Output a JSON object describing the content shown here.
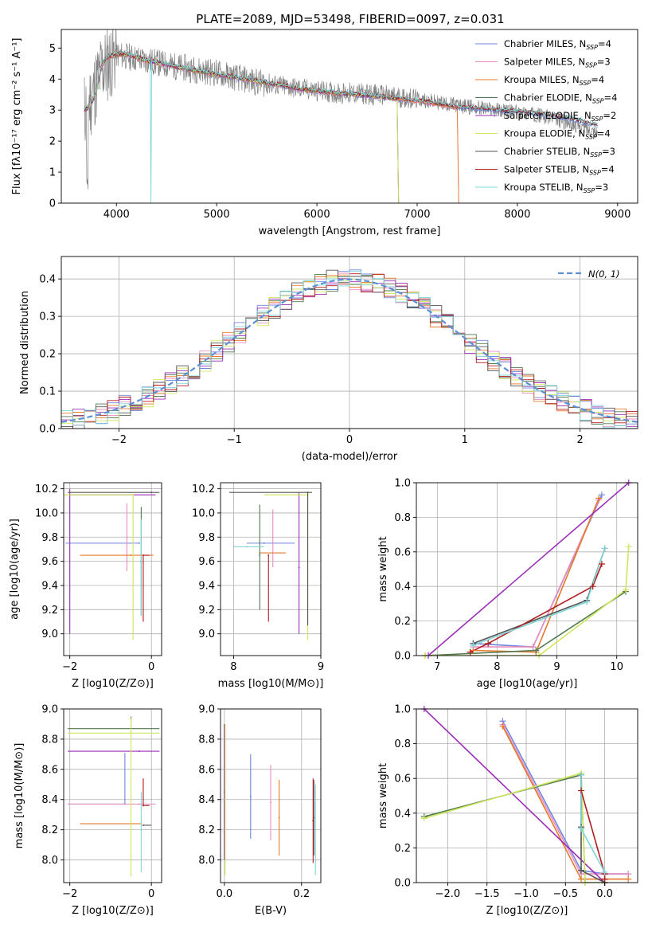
{
  "figure_title": "PLATE=2089, MJD=53498, FIBERID=0097, z=0.031",
  "colors": {
    "blue": "#6f86de",
    "pink": "#e78fbf",
    "orange": "#e5782a",
    "green": "#4f7a4f",
    "purple": "#9b2fb8",
    "yellow": "#cfe65c",
    "gray": "#555555",
    "red": "#b11d1d",
    "cyan": "#7fd5d8",
    "data": "#808080",
    "gaussian": "#5b8fd6"
  },
  "chart_data": [
    {
      "id": "spectrum",
      "type": "line",
      "xlabel": "wavelength [Angstrom, rest frame]",
      "ylabel": "Flux [fλ10⁻¹⁷ erg cm⁻² s⁻¹ A⁻¹]",
      "xlim": [
        3450,
        9200
      ],
      "ylim": [
        0,
        5.6
      ],
      "xticks": [
        4000,
        5000,
        6000,
        7000,
        8000,
        9000
      ],
      "yticks": [
        0,
        1,
        2,
        3,
        4,
        5
      ],
      "grid": false,
      "legend_position": "top-right",
      "observed_spectrum": {
        "color_key": "data",
        "x": [
          3680,
          3750,
          3850,
          4000,
          4300,
          4600,
          5000,
          5400,
          5800,
          6200,
          6600,
          7000,
          7400,
          7800,
          8200,
          8500,
          8800
        ],
        "y": [
          3.0,
          3.4,
          4.3,
          4.8,
          4.6,
          4.4,
          4.2,
          3.9,
          3.7,
          3.55,
          3.5,
          3.35,
          3.15,
          3.0,
          2.85,
          2.6,
          2.3
        ]
      },
      "model_spectra": {
        "x": [
          3680,
          3720,
          3760,
          3800,
          3850,
          3900,
          4000,
          4100,
          4300,
          4600,
          5000,
          5400,
          5800,
          6200,
          6600,
          7000,
          7400,
          7800,
          8200,
          8500,
          8800
        ],
        "y": [
          3.0,
          3.1,
          3.3,
          3.6,
          4.4,
          4.7,
          4.8,
          4.8,
          4.6,
          4.4,
          4.15,
          3.95,
          3.7,
          3.55,
          3.45,
          3.3,
          3.1,
          3.0,
          2.9,
          2.75,
          2.5
        ]
      },
      "series": [
        {
          "name": "Chabrier MILES, N_SSP=4",
          "color_key": "blue",
          "x_end": 8800
        },
        {
          "name": "Salpeter MILES, N_SSP=3",
          "color_key": "pink",
          "x_end": 7400
        },
        {
          "name": "Kroupa MILES, N_SSP=4",
          "color_key": "orange",
          "x_end": 7400
        },
        {
          "name": "Chabrier ELODIE, N_SSP=4",
          "color_key": "green",
          "x_end": 6800
        },
        {
          "name": "Salpeter ELODIE, N_SSP=2",
          "color_key": "purple",
          "x_end": 6800
        },
        {
          "name": "Kroupa ELODIE, N_SSP=4",
          "color_key": "yellow",
          "x_end": 6800
        },
        {
          "name": "Chabrier STELIB, N_SSP=3",
          "color_key": "gray",
          "x_end": 8800
        },
        {
          "name": "Salpeter STELIB, N_SSP=4",
          "color_key": "red",
          "x_end": 8800
        },
        {
          "name": "Kroupa STELIB, N_SSP=3",
          "color_key": "cyan",
          "x_end": 8800
        }
      ]
    },
    {
      "id": "residuals",
      "type": "line",
      "subtype": "step-histogram",
      "xlabel": "(data-model)/error",
      "ylabel": "Normed distribution",
      "xlim": [
        -2.5,
        2.5
      ],
      "ylim": [
        0,
        0.46
      ],
      "xticks": [
        -2,
        -1,
        0,
        1,
        2
      ],
      "yticks": [
        0.0,
        0.1,
        0.2,
        0.3,
        0.4
      ],
      "grid": true,
      "legend_position": "top-right",
      "gaussian_label": "N(0, 1)",
      "bins": {
        "start": -2.5,
        "width": 0.1,
        "count": 50
      },
      "series": [
        {
          "color_key": "blue",
          "noise_seed": 1
        },
        {
          "color_key": "pink",
          "noise_seed": 2
        },
        {
          "color_key": "orange",
          "noise_seed": 3
        },
        {
          "color_key": "green",
          "noise_seed": 4
        },
        {
          "color_key": "purple",
          "noise_seed": 5
        },
        {
          "color_key": "yellow",
          "noise_seed": 6
        },
        {
          "color_key": "gray",
          "noise_seed": 7
        },
        {
          "color_key": "red",
          "noise_seed": 8
        },
        {
          "color_key": "cyan",
          "noise_seed": 9
        }
      ]
    },
    {
      "id": "age_vs_Z",
      "type": "scatter",
      "xlabel": "Z [log10(Z/Z⊙)]",
      "ylabel": "age [log10(age/yr)]",
      "xlim": [
        -2.15,
        0.25
      ],
      "ylim": [
        8.82,
        10.25
      ],
      "xticks": [
        -2,
        0
      ],
      "yticks": [
        9.0,
        9.2,
        9.4,
        9.6,
        9.8,
        10.0,
        10.2
      ],
      "grid": true,
      "errorbars": [
        {
          "color_key": "blue",
          "x": -0.3,
          "xerr": [
            1.8,
            0.0
          ],
          "y": 9.75,
          "yerr": [
            0.0,
            0.0
          ]
        },
        {
          "color_key": "pink",
          "x": -0.6,
          "xerr": [
            0.0,
            0.0
          ],
          "y": 9.8,
          "yerr": [
            0.28,
            0.28
          ]
        },
        {
          "color_key": "orange",
          "x": -0.5,
          "xerr": [
            1.25,
            0.55
          ],
          "y": 9.65,
          "yerr": [
            0.0,
            0.0
          ]
        },
        {
          "color_key": "green",
          "x": -0.25,
          "xerr": [
            0.0,
            0.0
          ],
          "y": 9.6,
          "yerr": [
            0.45,
            0.45
          ]
        },
        {
          "color_key": "purple",
          "x": -2.0,
          "xerr": [
            0.0,
            2.1
          ],
          "y": 10.15,
          "yerr": [
            1.15,
            0.05
          ]
        },
        {
          "color_key": "yellow",
          "x": -0.45,
          "xerr": [
            1.7,
            0.0
          ],
          "y": 10.15,
          "yerr": [
            1.2,
            0.0
          ]
        },
        {
          "color_key": "gray",
          "x": 0.0,
          "xerr": [
            2.05,
            0.2
          ],
          "y": 10.17,
          "yerr": [
            0.0,
            0.0
          ]
        },
        {
          "color_key": "red",
          "x": -0.2,
          "xerr": [
            0.0,
            0.15
          ],
          "y": 9.65,
          "yerr": [
            0.55,
            0.0
          ]
        },
        {
          "color_key": "cyan",
          "x": -0.25,
          "xerr": [
            0.0,
            0.0
          ],
          "y": 9.55,
          "yerr": [
            0.4,
            0.4
          ]
        }
      ]
    },
    {
      "id": "age_vs_mass",
      "type": "scatter",
      "xlabel": "mass [log10(M/M⊙)]",
      "ylabel": "",
      "xlim": [
        7.85,
        9.0
      ],
      "ylim": [
        8.82,
        10.25
      ],
      "xticks": [
        8,
        9
      ],
      "yticks": [
        9.0,
        9.2,
        9.4,
        9.6,
        9.8,
        10.0,
        10.2
      ],
      "grid": true,
      "errorbars": [
        {
          "color_key": "blue",
          "x": 8.35,
          "xerr": [
            0.2,
            0.35
          ],
          "y": 9.75,
          "yerr": [
            0.0,
            0.0
          ]
        },
        {
          "color_key": "pink",
          "x": 8.45,
          "xerr": [
            0.0,
            0.0
          ],
          "y": 9.75,
          "yerr": [
            0.2,
            0.28
          ]
        },
        {
          "color_key": "orange",
          "x": 8.3,
          "xerr": [
            0.0,
            0.3
          ],
          "y": 9.67,
          "yerr": [
            0.0,
            0.0
          ]
        },
        {
          "color_key": "green",
          "x": 8.3,
          "xerr": [
            0.0,
            0.0
          ],
          "y": 9.65,
          "yerr": [
            0.45,
            0.42
          ]
        },
        {
          "color_key": "purple",
          "x": 8.75,
          "xerr": [
            0.0,
            0.0
          ],
          "y": 9.55,
          "yerr": [
            0.55,
            0.62
          ]
        },
        {
          "color_key": "yellow",
          "x": 8.85,
          "xerr": [
            0.5,
            0.0
          ],
          "y": 10.15,
          "yerr": [
            1.2,
            0.0
          ]
        },
        {
          "color_key": "gray",
          "x": 8.85,
          "xerr": [
            0.9,
            0.05
          ],
          "y": 10.17,
          "yerr": [
            1.1,
            0.0
          ]
        },
        {
          "color_key": "red",
          "x": 8.4,
          "xerr": [
            0.0,
            0.0
          ],
          "y": 9.65,
          "yerr": [
            0.55,
            0.0
          ]
        },
        {
          "color_key": "cyan",
          "x": 8.15,
          "xerr": [
            0.15,
            0.2
          ],
          "y": 9.72,
          "yerr": [
            0.0,
            0.0
          ]
        }
      ]
    },
    {
      "id": "weight_vs_age",
      "type": "line",
      "xlabel": "age [log10(age/yr)]",
      "ylabel": "mass weight",
      "xlim": [
        6.65,
        10.35
      ],
      "ylim": [
        0,
        1.0
      ],
      "xticks": [
        7,
        8,
        9,
        10
      ],
      "yticks": [
        0.0,
        0.2,
        0.4,
        0.6,
        0.8,
        1.0
      ],
      "grid": true,
      "series": [
        {
          "color_key": "blue",
          "x": [
            7.6,
            8.6,
            9.75
          ],
          "y": [
            0.07,
            0.05,
            0.93
          ]
        },
        {
          "color_key": "pink",
          "x": [
            7.6,
            8.6,
            9.7
          ],
          "y": [
            0.05,
            0.05,
            0.9
          ]
        },
        {
          "color_key": "orange",
          "x": [
            7.6,
            8.65,
            9.7
          ],
          "y": [
            0.03,
            0.02,
            0.91
          ]
        },
        {
          "color_key": "green",
          "x": [
            6.8,
            8.65,
            10.15
          ],
          "y": [
            0.0,
            0.03,
            0.37
          ]
        },
        {
          "color_key": "purple",
          "x": [
            6.85,
            10.2
          ],
          "y": [
            0.0,
            1.0
          ]
        },
        {
          "color_key": "yellow",
          "x": [
            6.8,
            8.7,
            10.15,
            10.2
          ],
          "y": [
            0.0,
            0.0,
            0.38,
            0.63
          ]
        },
        {
          "color_key": "gray",
          "x": [
            7.6,
            9.5,
            9.8
          ],
          "y": [
            0.07,
            0.32,
            0.62
          ]
        },
        {
          "color_key": "red",
          "x": [
            7.55,
            7.85,
            9.6,
            9.75
          ],
          "y": [
            0.02,
            0.07,
            0.4,
            0.53
          ]
        },
        {
          "color_key": "cyan",
          "x": [
            7.6,
            9.5,
            9.8
          ],
          "y": [
            0.06,
            0.31,
            0.62
          ]
        }
      ]
    },
    {
      "id": "mass_vs_Z",
      "type": "scatter",
      "xlabel": "Z [log10(Z/Z⊙)]",
      "ylabel": "mass [log10(M/M⊙)]",
      "xlim": [
        -2.15,
        0.25
      ],
      "ylim": [
        7.85,
        9.0
      ],
      "xticks": [
        -2,
        0
      ],
      "yticks": [
        8.0,
        8.2,
        8.4,
        8.6,
        8.8,
        9.0
      ],
      "grid": true,
      "errorbars": [
        {
          "color_key": "blue",
          "x": -0.65,
          "xerr": [
            1.4,
            0.0
          ],
          "y": 8.37,
          "yerr": [
            0.0,
            0.34
          ]
        },
        {
          "color_key": "pink",
          "x": -0.3,
          "xerr": [
            1.75,
            0.4
          ],
          "y": 8.37,
          "yerr": [
            0.0,
            0.0
          ]
        },
        {
          "color_key": "orange",
          "x": -0.5,
          "xerr": [
            1.25,
            0.25
          ],
          "y": 8.24,
          "yerr": [
            0.0,
            0.0
          ]
        },
        {
          "color_key": "green",
          "x": -0.5,
          "xerr": [
            1.55,
            0.7
          ],
          "y": 8.87,
          "yerr": [
            0.0,
            0.08
          ]
        },
        {
          "color_key": "purple",
          "x": -0.3,
          "xerr": [
            1.75,
            0.5
          ],
          "y": 8.72,
          "yerr": [
            0.0,
            0.0
          ]
        },
        {
          "color_key": "yellow",
          "x": -0.5,
          "xerr": [
            1.55,
            0.7
          ],
          "y": 8.84,
          "yerr": [
            0.95,
            0.1
          ]
        },
        {
          "color_key": "gray",
          "x": -0.2,
          "xerr": [
            0.0,
            0.2
          ],
          "y": 8.23,
          "yerr": [
            0.0,
            0.0
          ]
        },
        {
          "color_key": "red",
          "x": -0.2,
          "xerr": [
            0.0,
            0.15
          ],
          "y": 8.36,
          "yerr": [
            0.0,
            0.18
          ]
        },
        {
          "color_key": "cyan",
          "x": -0.25,
          "xerr": [
            0.0,
            0.0
          ],
          "y": 8.2,
          "yerr": [
            0.28,
            0.25
          ]
        }
      ]
    },
    {
      "id": "mass_vs_ebv",
      "type": "scatter",
      "xlabel": "E(B-V)",
      "ylabel": "",
      "xlim": [
        -0.01,
        0.25
      ],
      "ylim": [
        7.85,
        9.0
      ],
      "xticks": [
        0.0,
        0.2
      ],
      "yticks": [
        8.0,
        8.2,
        8.4,
        8.6,
        8.8,
        9.0
      ],
      "grid": true,
      "errorbars": [
        {
          "color_key": "blue",
          "x": 0.068,
          "y": 8.42,
          "yerr": [
            0.28,
            0.28
          ]
        },
        {
          "color_key": "pink",
          "x": 0.12,
          "y": 8.38,
          "yerr": [
            0.25,
            0.25
          ]
        },
        {
          "color_key": "orange",
          "x": 0.142,
          "y": 8.28,
          "yerr": [
            0.25,
            0.25
          ]
        },
        {
          "color_key": "green",
          "x": 0.0,
          "y": 8.45,
          "yerr": [
            0.45,
            0.45
          ]
        },
        {
          "color_key": "purple",
          "x": 0.0,
          "y": 8.45,
          "yerr": [
            0.45,
            0.45
          ]
        },
        {
          "color_key": "yellow",
          "x": 0.002,
          "y": 8.4,
          "yerr": [
            0.5,
            0.5
          ]
        },
        {
          "color_key": "gray",
          "x": 0.232,
          "y": 8.28,
          "yerr": [
            0.25,
            0.25
          ]
        },
        {
          "color_key": "red",
          "x": 0.23,
          "y": 8.26,
          "yerr": [
            0.28,
            0.28
          ]
        },
        {
          "color_key": "cyan",
          "x": 0.236,
          "y": 8.2,
          "yerr": [
            0.3,
            0.3
          ]
        }
      ]
    },
    {
      "id": "weight_vs_Z",
      "type": "line",
      "xlabel": "Z [log10(Z/Z⊙)]",
      "ylabel": "mass weight",
      "xlim": [
        -2.4,
        0.42
      ],
      "ylim": [
        0,
        1.0
      ],
      "xticks": [
        -2.0,
        -1.5,
        -1.0,
        -0.5,
        0.0
      ],
      "yticks": [
        0.0,
        0.2,
        0.4,
        0.6,
        0.8,
        1.0
      ],
      "grid": true,
      "series": [
        {
          "color_key": "blue",
          "x": [
            -1.3,
            -0.3,
            0.0,
            0.3
          ],
          "y": [
            0.93,
            0.07,
            0.05,
            0.05
          ]
        },
        {
          "color_key": "pink",
          "x": [
            -1.3,
            -0.3,
            0.0,
            0.3
          ],
          "y": [
            0.91,
            0.05,
            0.05,
            0.05
          ]
        },
        {
          "color_key": "orange",
          "x": [
            -1.3,
            -0.3,
            0.0,
            0.3
          ],
          "y": [
            0.9,
            0.02,
            0.02,
            0.02
          ]
        },
        {
          "color_key": "green",
          "x": [
            -2.3,
            -0.3,
            -0.25,
            0.0
          ],
          "y": [
            0.38,
            0.62,
            0.0,
            0.0
          ]
        },
        {
          "color_key": "purple",
          "x": [
            -2.3,
            0.0
          ],
          "y": [
            1.0,
            0.0
          ]
        },
        {
          "color_key": "yellow",
          "x": [
            -2.3,
            -0.3,
            -0.25,
            0.0
          ],
          "y": [
            0.37,
            0.63,
            0.0,
            0.0
          ]
        },
        {
          "color_key": "gray",
          "x": [
            -0.3,
            -0.3,
            -0.3,
            0.0
          ],
          "y": [
            0.62,
            0.32,
            0.07,
            0.0
          ]
        },
        {
          "color_key": "red",
          "x": [
            -0.3,
            0.0,
            0.0
          ],
          "y": [
            0.53,
            0.05,
            0.02
          ]
        },
        {
          "color_key": "cyan",
          "x": [
            -0.3,
            -0.3,
            0.0
          ],
          "y": [
            0.62,
            0.31,
            0.06
          ]
        }
      ]
    }
  ]
}
